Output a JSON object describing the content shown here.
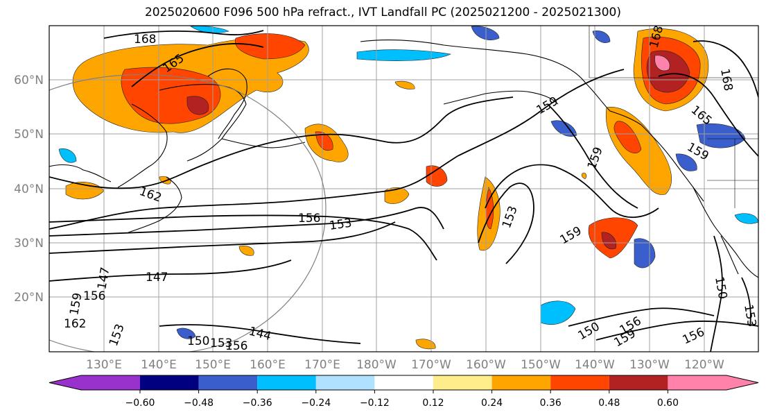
{
  "title": "2025020600 F096 500 hPa refract., IVT Landfall PC (2025021200 - 2025021300)",
  "lat_labels": [
    "60°N",
    "50°N",
    "40°N",
    "30°N",
    "20°N"
  ],
  "lon_labels": [
    "130°E",
    "140°E",
    "150°E",
    "160°E",
    "170°E",
    "180°W",
    "170°W",
    "160°W",
    "150°W",
    "140°W",
    "130°W",
    "120°W"
  ],
  "contour_labels": [
    "168",
    "165",
    "162",
    "156",
    "153",
    "159",
    "147",
    "144",
    "150",
    "153",
    "159",
    "159",
    "150",
    "156",
    "159",
    "156",
    "165",
    "168",
    "159",
    "150",
    "153",
    "162",
    "153",
    "150",
    "153",
    "156"
  ],
  "colorbar": {
    "ticks": [
      "−0.60",
      "−0.48",
      "−0.36",
      "−0.24",
      "−0.12",
      "0.12",
      "0.24",
      "0.36",
      "0.48",
      "0.60"
    ],
    "colors": [
      "#9932cc",
      "#000080",
      "#3a5fcd",
      "#00bfff",
      "#b0e2ff",
      "#ffffff",
      "#ffec8b",
      "#ffa500",
      "#ff4500",
      "#b22222",
      "#ff82ab"
    ]
  }
}
